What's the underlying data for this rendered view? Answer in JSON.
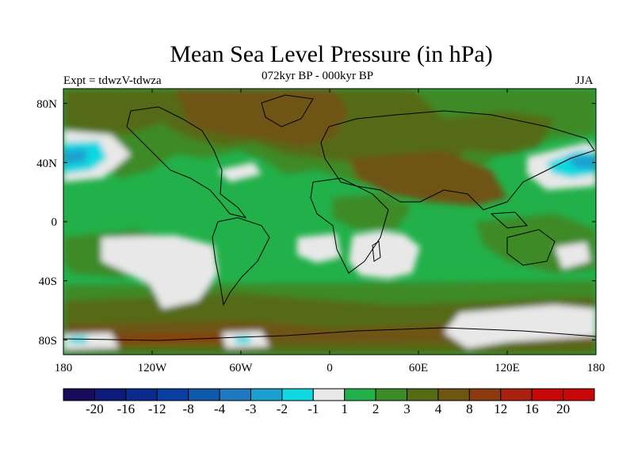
{
  "title": "Mean Sea Level Pressure (in hPa)",
  "subtitle": "072kyr BP - 000kyr BP",
  "experiment": "Expt = tdwzV-tdwza",
  "season": "JJA",
  "map": {
    "projection": "cylindrical equidistant",
    "lon_range": [
      -180,
      180
    ],
    "lat_range": [
      -90,
      90
    ],
    "lat_ticks": [
      {
        "lat": 80,
        "label": "80N"
      },
      {
        "lat": 40,
        "label": "40N"
      },
      {
        "lat": 0,
        "label": "0"
      },
      {
        "lat": -40,
        "label": "40S"
      },
      {
        "lat": -80,
        "label": "80S"
      }
    ],
    "lon_ticks": [
      {
        "lon": -180,
        "label": "180"
      },
      {
        "lon": -120,
        "label": "120W"
      },
      {
        "lon": -60,
        "label": "60W"
      },
      {
        "lon": 0,
        "label": "0"
      },
      {
        "lon": 60,
        "label": "60E"
      },
      {
        "lon": 120,
        "label": "120E"
      },
      {
        "lon": 180,
        "label": "180"
      }
    ]
  },
  "colorbar": {
    "labels": [
      "-20",
      "-16",
      "-12",
      "-8",
      "-4",
      "-3",
      "-2",
      "-1",
      "1",
      "2",
      "3",
      "4",
      "8",
      "12",
      "16",
      "20"
    ],
    "colors": [
      "#1a0a5a",
      "#0c1a78",
      "#0a2a8c",
      "#0a3ea0",
      "#1058a8",
      "#1f78c0",
      "#1aa0d0",
      "#10d8e0",
      "#e8e8e8",
      "#22b04a",
      "#3c8a28",
      "#556a14",
      "#6e5512",
      "#8a3c10",
      "#a82010",
      "#c80808"
    ]
  }
}
